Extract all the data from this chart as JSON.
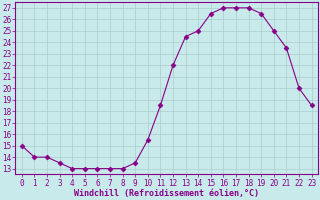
{
  "x": [
    0,
    1,
    2,
    3,
    4,
    5,
    6,
    7,
    8,
    9,
    10,
    11,
    12,
    13,
    14,
    15,
    16,
    17,
    18,
    19,
    20,
    21,
    22,
    23
  ],
  "y": [
    15,
    14,
    14,
    13.5,
    13,
    13,
    13,
    13,
    13,
    13.5,
    15.5,
    18.5,
    22,
    24.5,
    25,
    26.5,
    27,
    27,
    27,
    26.5,
    25,
    23.5,
    20,
    18.5
  ],
  "line_color": "#880088",
  "marker": "D",
  "marker_size": 2.5,
  "bg_color": "#c8eaea",
  "grid_color": "#aacccc",
  "xlabel": "Windchill (Refroidissement éolien,°C)",
  "xlabel_color": "#880088",
  "xlabel_fontsize": 6.0,
  "ylabel_ticks": [
    13,
    14,
    15,
    16,
    17,
    18,
    19,
    20,
    21,
    22,
    23,
    24,
    25,
    26,
    27
  ],
  "xlim": [
    -0.5,
    23.5
  ],
  "ylim": [
    12.5,
    27.5
  ],
  "tick_fontsize": 5.5,
  "tick_color": "#880088",
  "axis_color": "#880088"
}
